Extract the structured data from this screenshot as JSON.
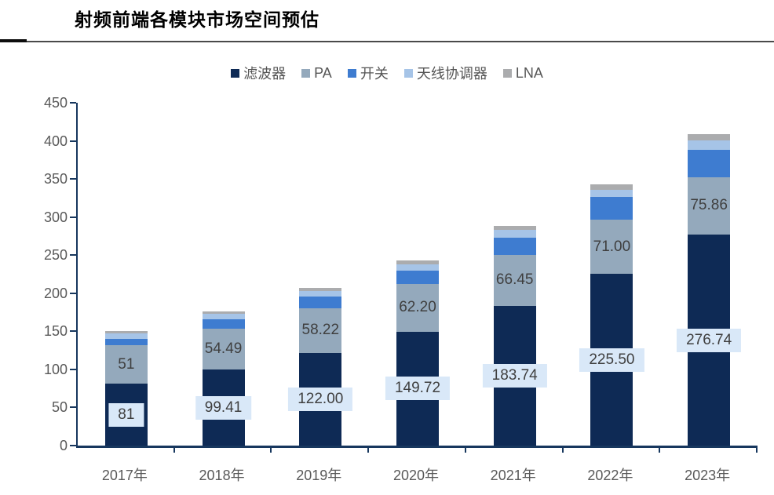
{
  "header": {
    "title": "射频前端各模块市场空间预估"
  },
  "chart_data": {
    "type": "bar",
    "stacked": true,
    "title": "射频前端各模块市场空间预估",
    "categories": [
      "2017年",
      "2018年",
      "2019年",
      "2020年",
      "2021年",
      "2022年",
      "2023年"
    ],
    "series": [
      {
        "key": "filter",
        "name": "滤波器",
        "color": "#0e2a55",
        "values": [
          81,
          99.41,
          122.0,
          149.72,
          183.74,
          225.5,
          276.74
        ],
        "data_labels": [
          "81",
          "99.41",
          "122.00",
          "149.72",
          "183.74",
          "225.50",
          "276.74"
        ],
        "label_style": "boxed"
      },
      {
        "key": "pa",
        "name": "PA",
        "color": "#94a9bc",
        "values": [
          51,
          54.49,
          58.22,
          62.2,
          66.45,
          71.0,
          75.86
        ],
        "data_labels": [
          "51",
          "54.49",
          "58.22",
          "62.20",
          "66.45",
          "71.00",
          "75.86"
        ],
        "label_style": "plain"
      },
      {
        "key": "switch",
        "name": "开关",
        "color": "#3e7cd0",
        "values": [
          8,
          12,
          15,
          18,
          23,
          30,
          36
        ],
        "data_labels": null,
        "label_style": "none"
      },
      {
        "key": "antenna-tuner",
        "name": "天线协调器",
        "color": "#a6c4e7",
        "values": [
          7,
          7,
          8,
          8,
          10,
          9,
          12
        ],
        "data_labels": null,
        "label_style": "none"
      },
      {
        "key": "lna",
        "name": "LNA",
        "color": "#abacae",
        "values": [
          3,
          3,
          3.5,
          5,
          5,
          7,
          8
        ],
        "data_labels": null,
        "label_style": "none"
      }
    ],
    "ylim": [
      0,
      450
    ],
    "ytick_step": 50,
    "ytick_labels": [
      "0",
      "50",
      "100",
      "150",
      "200",
      "250",
      "300",
      "350",
      "400",
      "450"
    ],
    "legend_position": "top-center",
    "grid": false,
    "axis_color": "#17375e",
    "label_box_color": "#d9e8f8",
    "tick_text_color": "#595959"
  }
}
